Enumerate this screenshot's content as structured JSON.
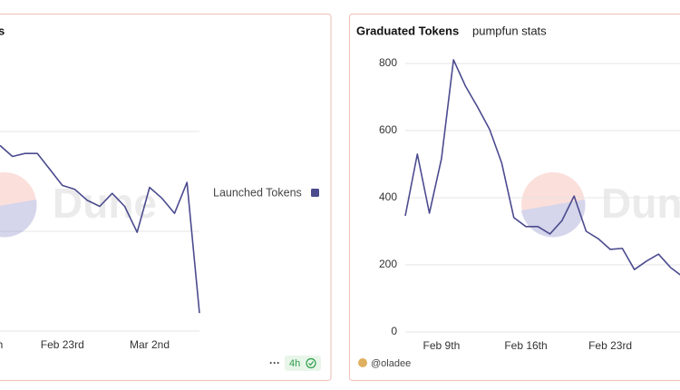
{
  "chart_data": [
    {
      "type": "line",
      "title": "s",
      "watermark": "Dune",
      "legend": "right",
      "categories": [
        "h",
        null,
        null,
        null,
        null,
        "Feb 23rd",
        null,
        null,
        null,
        null,
        null,
        null,
        "Mar 2nd",
        null,
        null,
        null,
        null
      ],
      "series": [
        {
          "name": "Launched Tokens",
          "color": "#4b4b8f",
          "values": [
            1.86,
            1.75,
            1.78,
            1.78,
            1.62,
            1.46,
            1.42,
            1.31,
            1.25,
            1.38,
            1.25,
            0.99,
            1.44,
            1.33,
            1.18,
            1.49,
            0.18
          ]
        }
      ],
      "ylim": [
        0,
        3
      ],
      "grid": true
    },
    {
      "type": "line",
      "title": "Graduated Tokens",
      "subtitle": "pumpfun stats",
      "watermark": "Dune",
      "categories": [
        null,
        null,
        null,
        "Feb 9th",
        null,
        null,
        null,
        null,
        null,
        null,
        "Feb 16th",
        null,
        null,
        null,
        null,
        null,
        null,
        "Feb 23rd",
        null,
        null,
        null,
        null,
        null,
        null
      ],
      "series": [
        {
          "name": "Graduated Tokens",
          "color": "#4b4b8f",
          "values": [
            346,
            530,
            354,
            516,
            811,
            732,
            670,
            603,
            503,
            341,
            314,
            314,
            292,
            332,
            405,
            300,
            278,
            246,
            249,
            186,
            211,
            232,
            192,
            165
          ]
        }
      ],
      "ylim": [
        0,
        800
      ],
      "yticks": [
        0,
        200,
        400,
        600,
        800
      ],
      "grid": true
    }
  ],
  "left_footer": {
    "menu": "···",
    "badge": "4h"
  },
  "right_footer": {
    "author": "@oladee"
  }
}
